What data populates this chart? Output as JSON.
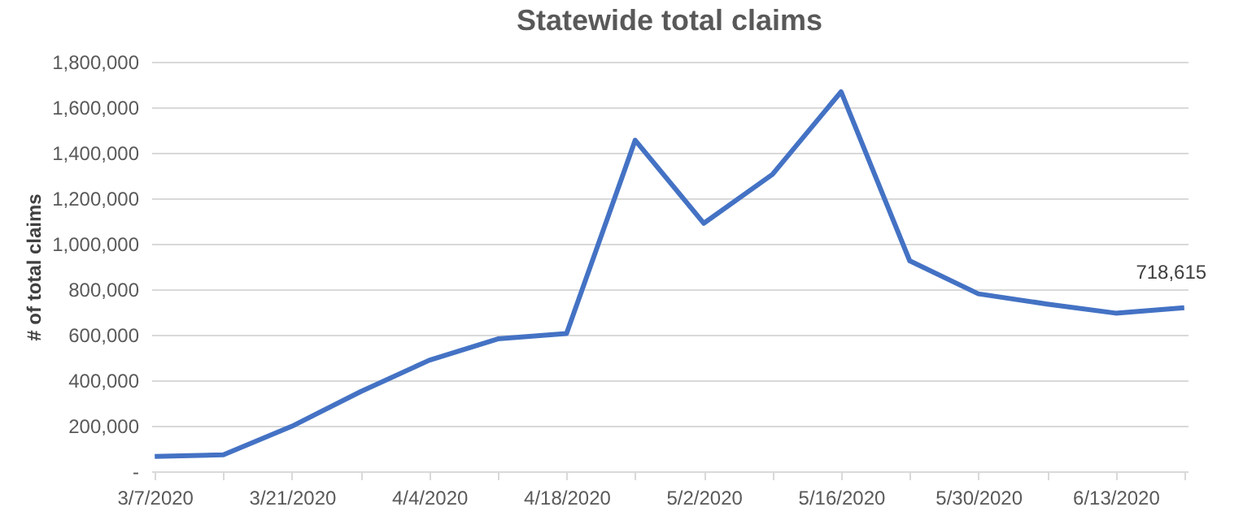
{
  "chart_data": {
    "type": "line",
    "title": "Statewide total claims",
    "ylabel": "# of total claims",
    "categories": [
      "3/7/2020",
      null,
      "3/21/2020",
      null,
      "4/4/2020",
      null,
      "4/18/2020",
      null,
      "5/2/2020",
      null,
      "5/16/2020",
      null,
      "5/30/2020",
      null,
      "6/13/2020",
      null
    ],
    "series": [
      {
        "color": "#4472c4",
        "values": [
          65000,
          72000,
          198000,
          350000,
          488000,
          582000,
          605000,
          1455000,
          1090000,
          1305000,
          1668000,
          925000,
          780000,
          735000,
          695000,
          718615
        ],
        "value_labels": [
          null,
          null,
          null,
          null,
          null,
          null,
          null,
          null,
          null,
          null,
          null,
          null,
          null,
          null,
          null,
          "718,615"
        ]
      }
    ],
    "ylim": [
      0,
      1800000
    ],
    "yticks": [
      {
        "value": 0,
        "label": "-"
      },
      {
        "value": 200000,
        "label": "200,000"
      },
      {
        "value": 400000,
        "label": "400,000"
      },
      {
        "value": 600000,
        "label": "600,000"
      },
      {
        "value": 800000,
        "label": "800,000"
      },
      {
        "value": 1000000,
        "label": "1,000,000"
      },
      {
        "value": 1200000,
        "label": "1,200,000"
      },
      {
        "value": 1400000,
        "label": "1,400,000"
      },
      {
        "value": 1600000,
        "label": "1,600,000"
      },
      {
        "value": 1800000,
        "label": "1,800,000"
      }
    ],
    "grid": "y",
    "marker": "none",
    "line_style": "solid"
  }
}
